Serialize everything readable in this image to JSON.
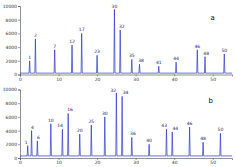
{
  "chart_data": [
    {
      "type": "line",
      "color": "#2a35c9",
      "xlim": [
        0,
        55
      ],
      "xticks": [
        0,
        10,
        20,
        30,
        40,
        50
      ],
      "ylim": [
        0,
        10000
      ],
      "yticks": [
        0,
        2000,
        4000,
        6000,
        8000,
        10000
      ],
      "x": [
        0,
        2.35,
        2.5,
        2.65,
        3.85,
        4.0,
        4.15,
        8.85,
        9.0,
        9.15,
        13.35,
        13.5,
        13.65,
        15.85,
        16.0,
        16.15,
        19.85,
        20.0,
        20.15,
        24.35,
        24.5,
        24.65,
        25.85,
        26.0,
        26.15,
        28.85,
        29.0,
        29.15,
        30.85,
        31.0,
        31.15,
        35.85,
        36.0,
        36.15,
        40.35,
        40.5,
        40.65,
        45.85,
        46.0,
        46.15,
        47.85,
        48.0,
        48.15,
        52.85,
        53.0,
        53.15,
        55
      ],
      "series": [
        {
          "color": "#2a35c9",
          "values": [
            200,
            200,
            2000,
            200,
            200,
            5200,
            200,
            200,
            3600,
            200,
            200,
            4300,
            200,
            200,
            6000,
            200,
            200,
            2800,
            200,
            200,
            9500,
            200,
            200,
            6500,
            200,
            200,
            2200,
            200,
            200,
            1500,
            200,
            200,
            1200,
            200,
            200,
            1800,
            200,
            200,
            3600,
            200,
            200,
            2600,
            200,
            200,
            3000,
            200,
            200
          ]
        }
      ],
      "annotations": [
        {
          "text": "1",
          "x": 2.5,
          "y": 2300
        },
        {
          "text": "2",
          "x": 4.0,
          "y": 5500
        },
        {
          "text": "7",
          "x": 9.0,
          "y": 3900
        },
        {
          "text": "12",
          "x": 13.5,
          "y": 4600
        },
        {
          "text": "17",
          "x": 16.0,
          "y": 6300
        },
        {
          "text": "23",
          "x": 20.0,
          "y": 3100
        },
        {
          "text": "30",
          "x": 24.5,
          "y": 9700
        },
        {
          "text": "32",
          "x": 26.4,
          "y": 6800
        },
        {
          "text": "35",
          "x": 29.0,
          "y": 2500
        },
        {
          "text": "38",
          "x": 31.4,
          "y": 1800
        },
        {
          "text": "41",
          "x": 36.0,
          "y": 1500
        },
        {
          "text": "44",
          "x": 40.5,
          "y": 2100
        },
        {
          "text": "46",
          "x": 46.0,
          "y": 3900
        },
        {
          "text": "48",
          "x": 48.3,
          "y": 2900
        },
        {
          "text": "50",
          "x": 53.0,
          "y": 3300
        },
        {
          "text": "a",
          "x": 50.0,
          "y": 8000
        }
      ]
    },
    {
      "type": "line",
      "color": "#2a35c9",
      "xlim": [
        0,
        55
      ],
      "xticks": [
        0,
        10,
        20,
        30,
        40,
        50
      ],
      "ylim": [
        0,
        10000
      ],
      "yticks": [
        0,
        2000,
        4000,
        6000,
        8000,
        10000
      ],
      "x": [
        0,
        1.85,
        2.0,
        2.15,
        2.85,
        3.0,
        3.15,
        4.35,
        4.5,
        4.65,
        7.85,
        8.0,
        8.15,
        10.85,
        11.0,
        11.15,
        12.35,
        12.5,
        12.65,
        15.35,
        15.5,
        15.65,
        18.35,
        18.5,
        18.65,
        21.85,
        22.0,
        22.15,
        24.85,
        25.0,
        25.15,
        26.35,
        26.5,
        26.65,
        28.85,
        29.0,
        29.15,
        33.35,
        33.5,
        33.65,
        37.85,
        38.0,
        38.15,
        39.35,
        39.5,
        39.65,
        43.85,
        44.0,
        44.15,
        47.35,
        47.5,
        47.65,
        51.85,
        52.0,
        52.15,
        55
      ],
      "series": [
        {
          "color": "#2a35c9",
          "values": [
            300,
            300,
            1800,
            300,
            300,
            4000,
            300,
            300,
            2500,
            300,
            300,
            5000,
            300,
            300,
            4200,
            300,
            300,
            6500,
            300,
            300,
            3500,
            300,
            300,
            4800,
            300,
            300,
            6000,
            300,
            300,
            9500,
            300,
            300,
            9000,
            300,
            300,
            3000,
            300,
            300,
            2000,
            300,
            300,
            4200,
            300,
            300,
            3800,
            300,
            300,
            4500,
            300,
            300,
            2300,
            300,
            300,
            3600,
            300,
            300
          ]
        }
      ],
      "annotations": [
        {
          "text": "1",
          "x": 1.6,
          "y": 2100
        },
        {
          "text": "4",
          "x": 3.2,
          "y": 4300
        },
        {
          "text": "6",
          "x": 4.8,
          "y": 2800
        },
        {
          "text": "10",
          "x": 8.0,
          "y": 5300
        },
        {
          "text": "14",
          "x": 10.4,
          "y": 4500
        },
        {
          "text": "16",
          "x": 13.0,
          "y": 6800
        },
        {
          "text": "20",
          "x": 15.5,
          "y": 3800
        },
        {
          "text": "25",
          "x": 18.5,
          "y": 5100
        },
        {
          "text": "30",
          "x": 22.0,
          "y": 6300
        },
        {
          "text": "32",
          "x": 24.2,
          "y": 9700
        },
        {
          "text": "34",
          "x": 27.4,
          "y": 9300
        },
        {
          "text": "36",
          "x": 29.3,
          "y": 3300
        },
        {
          "text": "40",
          "x": 33.5,
          "y": 2300
        },
        {
          "text": "43",
          "x": 37.4,
          "y": 4500
        },
        {
          "text": "44",
          "x": 40.3,
          "y": 4100
        },
        {
          "text": "46",
          "x": 44.0,
          "y": 4800
        },
        {
          "text": "48",
          "x": 47.5,
          "y": 2600
        },
        {
          "text": "50",
          "x": 52.0,
          "y": 3900
        },
        {
          "text": "b",
          "x": 49.5,
          "y": 8000
        }
      ]
    }
  ]
}
